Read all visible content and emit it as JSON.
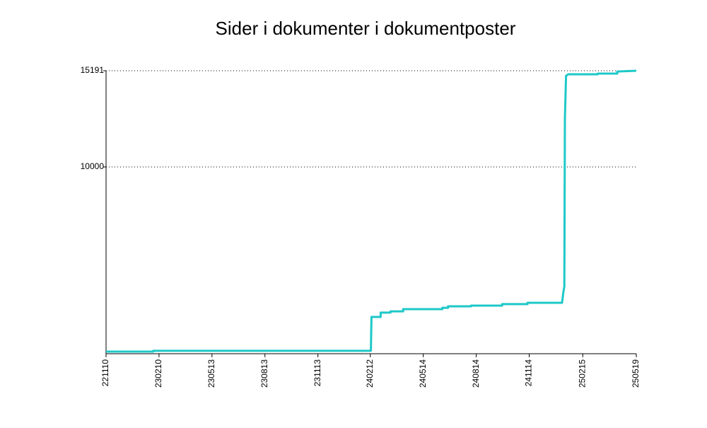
{
  "chart_data": {
    "type": "line",
    "title": "Sider i dokumenter i dokumentposter",
    "x": [
      0,
      82,
      82,
      460,
      461,
      477,
      477,
      494,
      494,
      516,
      516,
      584,
      584,
      594,
      594,
      634,
      634,
      688,
      688,
      732,
      732,
      792,
      794,
      796,
      797,
      799,
      803,
      854,
      854,
      888,
      888,
      921
    ],
    "series": [
      {
        "color": "#1ec8c8",
        "values": [
          40,
          40,
          80,
          80,
          1910,
          1910,
          2140,
          2140,
          2210,
          2210,
          2330,
          2330,
          2400,
          2400,
          2480,
          2480,
          2520,
          2520,
          2600,
          2600,
          2670,
          2670,
          3170,
          3550,
          12670,
          14920,
          15000,
          15000,
          15040,
          15040,
          15150,
          15191
        ]
      }
    ],
    "xlim": [
      0,
      921
    ],
    "xticks": [
      {
        "value": 0,
        "label": "221110"
      },
      {
        "value": 92,
        "label": "230210"
      },
      {
        "value": 184,
        "label": "230513"
      },
      {
        "value": 276,
        "label": "230813"
      },
      {
        "value": 368,
        "label": "231113"
      },
      {
        "value": 459,
        "label": "240212"
      },
      {
        "value": 551,
        "label": "240514"
      },
      {
        "value": 643,
        "label": "240814"
      },
      {
        "value": 735,
        "label": "241114"
      },
      {
        "value": 828,
        "label": "250215"
      },
      {
        "value": 921,
        "label": "250519"
      }
    ],
    "ylim": [
      0,
      15191
    ],
    "yticks": [
      10000,
      15191
    ],
    "grid": true
  }
}
